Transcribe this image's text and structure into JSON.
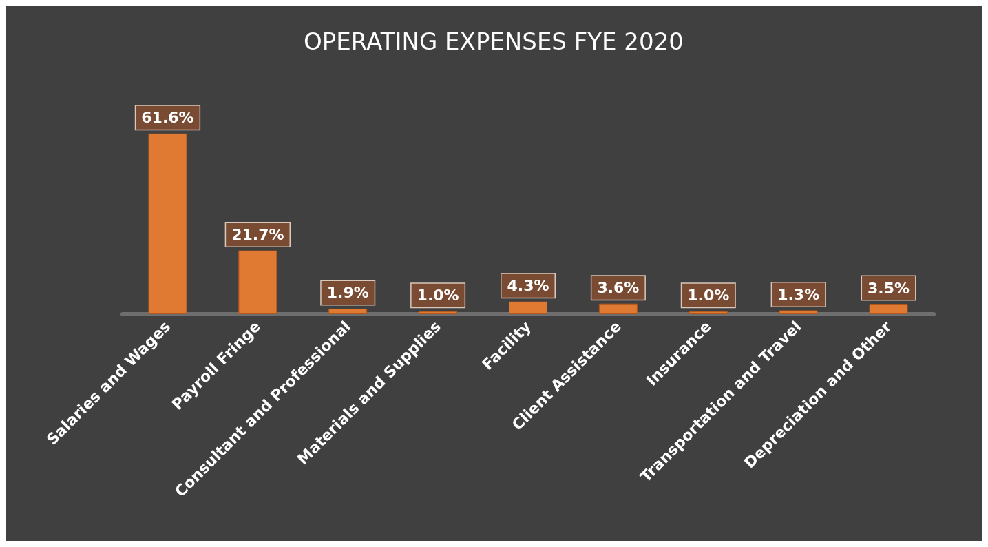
{
  "chart_data": {
    "type": "bar",
    "title": "OPERATING EXPENSES FYE 2020",
    "categories": [
      "Salaries and Wages",
      "Payroll Fringe",
      "Consultant and Professional",
      "Materials and Supplies",
      "Facility",
      "Client Assistance",
      "Insurance",
      "Transportation and Travel",
      "Depreciation and Other"
    ],
    "values": [
      61.6,
      21.7,
      1.9,
      1.0,
      4.3,
      3.6,
      1.0,
      1.3,
      3.5
    ],
    "value_labels": [
      "61.6%",
      "21.7%",
      "1.9%",
      "1.0%",
      "4.3%",
      "3.6%",
      "1.0%",
      "1.3%",
      "3.5%"
    ],
    "color": "#e07a32"
  }
}
